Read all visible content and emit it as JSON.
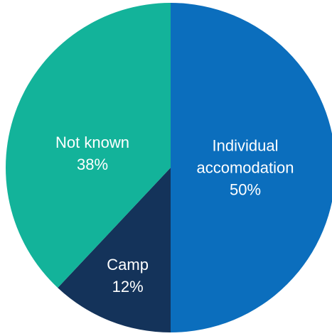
{
  "chart_data": {
    "type": "pie",
    "categories": [
      "Individual accomodation",
      "Camp",
      "Not known"
    ],
    "values": [
      50,
      12,
      38
    ],
    "value_labels": [
      "50%",
      "12%",
      "38%"
    ],
    "colors": [
      "#0b6ebd",
      "#14335a",
      "#13b39a"
    ]
  }
}
